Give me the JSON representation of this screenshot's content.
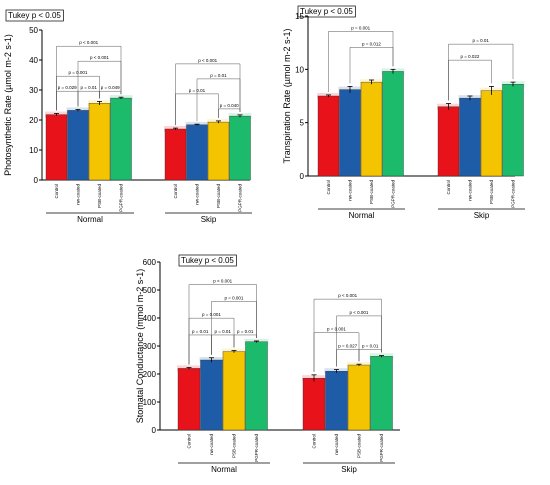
{
  "chart_data": [
    {
      "type": "bar",
      "title": "Tukey p < 0.05",
      "ylabel": "Photosynthetic Rate (µmol m-2 s-1)",
      "ylim": [
        0,
        50
      ],
      "yticks": [
        0,
        10,
        20,
        30,
        40,
        50
      ],
      "groups": [
        "Normal",
        "Skip"
      ],
      "categories": [
        "Control",
        "nw-coated",
        "PSB-coated",
        "PGPR-coated"
      ],
      "colors": [
        "#e8121b",
        "#1f5ca8",
        "#f5c400",
        "#1cba6b"
      ],
      "series": [
        {
          "group": "Normal",
          "values": [
            21.8,
            23.2,
            25.6,
            27.3
          ],
          "errors": [
            0.4,
            0.3,
            0.6,
            0.3
          ]
        },
        {
          "group": "Skip",
          "values": [
            17.0,
            18.4,
            19.3,
            21.3
          ],
          "errors": [
            0.3,
            0.2,
            0.4,
            0.4
          ]
        }
      ],
      "comparisons": [
        {
          "group": "Normal",
          "from": 0,
          "to": 3,
          "level": 4,
          "label": "p < 0.001"
        },
        {
          "group": "Normal",
          "from": 1,
          "to": 3,
          "level": 3,
          "label": "p < 0.001"
        },
        {
          "group": "Normal",
          "from": 0,
          "to": 2,
          "level": 2,
          "label": "p = 0.001"
        },
        {
          "group": "Normal",
          "from": 0,
          "to": 1,
          "level": 1,
          "label": "p = 0.029"
        },
        {
          "group": "Normal",
          "from": 1,
          "to": 2,
          "level": 1,
          "label": "p = 0.01"
        },
        {
          "group": "Normal",
          "from": 2,
          "to": 3,
          "level": 1,
          "label": "p = 0.049"
        },
        {
          "group": "Skip",
          "from": 0,
          "to": 3,
          "level": 4,
          "label": "p < 0.001"
        },
        {
          "group": "Skip",
          "from": 1,
          "to": 3,
          "level": 3,
          "label": "p = 0.01"
        },
        {
          "group": "Skip",
          "from": 0,
          "to": 2,
          "level": 2,
          "label": "p = 0.01"
        },
        {
          "group": "Skip",
          "from": 2,
          "to": 3,
          "level": 1,
          "label": "p = 0.040"
        }
      ]
    },
    {
      "type": "bar",
      "title": "Tukey p < 0.05",
      "ylabel": "Transpiration Rate (µmol m-2 s-1)",
      "ylim": [
        0,
        15
      ],
      "yticks": [
        0,
        5,
        10,
        15
      ],
      "groups": [
        "Normal",
        "Skip"
      ],
      "categories": [
        "Control",
        "nw-coated",
        "PSB-coated",
        "PGPR-coated"
      ],
      "colors": [
        "#e8121b",
        "#1f5ca8",
        "#f5c400",
        "#1cba6b"
      ],
      "series": [
        {
          "group": "Normal",
          "values": [
            7.5,
            8.1,
            8.8,
            9.8
          ],
          "errors": [
            0.1,
            0.3,
            0.2,
            0.2
          ]
        },
        {
          "group": "Skip",
          "values": [
            6.5,
            7.3,
            8.0,
            8.6
          ],
          "errors": [
            0.3,
            0.2,
            0.4,
            0.2
          ]
        }
      ],
      "comparisons": [
        {
          "group": "Normal",
          "from": 0,
          "to": 3,
          "level": 3,
          "label": "p = 0.001"
        },
        {
          "group": "Normal",
          "from": 1,
          "to": 3,
          "level": 2,
          "label": "p = 0.012"
        },
        {
          "group": "Skip",
          "from": 0,
          "to": 3,
          "level": 3,
          "label": "p = 0.01"
        },
        {
          "group": "Skip",
          "from": 0,
          "to": 2,
          "level": 2,
          "label": "p = 0.022"
        }
      ]
    },
    {
      "type": "bar",
      "title": "Tukey p < 0.05",
      "ylabel": "Stomatal Conductance (mmol m-2 s-1)",
      "ylim": [
        0,
        600
      ],
      "yticks": [
        0,
        100,
        200,
        300,
        400,
        500,
        600
      ],
      "groups": [
        "Normal",
        "Skip"
      ],
      "categories": [
        "Control",
        "nw-coated",
        "PSB-coated",
        "PGPR-coated"
      ],
      "colors": [
        "#e8121b",
        "#1f5ca8",
        "#f5c400",
        "#1cba6b"
      ],
      "series": [
        {
          "group": "Normal",
          "values": [
            220,
            250,
            280,
            315
          ],
          "errors": [
            3,
            8,
            4,
            3
          ]
        },
        {
          "group": "Skip",
          "values": [
            185,
            210,
            232,
            263
          ],
          "errors": [
            12,
            6,
            3,
            3
          ]
        }
      ],
      "comparisons": [
        {
          "group": "Normal",
          "from": 0,
          "to": 3,
          "level": 4,
          "label": "p < 0.001"
        },
        {
          "group": "Normal",
          "from": 1,
          "to": 3,
          "level": 3,
          "label": "p = 0.001"
        },
        {
          "group": "Normal",
          "from": 0,
          "to": 2,
          "level": 2,
          "label": "p = 0.001"
        },
        {
          "group": "Normal",
          "from": 0,
          "to": 1,
          "level": 1,
          "label": "p = 0.01"
        },
        {
          "group": "Normal",
          "from": 1,
          "to": 2,
          "level": 1,
          "label": "p = 0.01"
        },
        {
          "group": "Normal",
          "from": 2,
          "to": 3,
          "level": 1,
          "label": "p = 0.01"
        },
        {
          "group": "Skip",
          "from": 0,
          "to": 3,
          "level": 4,
          "label": "p < 0.001"
        },
        {
          "group": "Skip",
          "from": 1,
          "to": 3,
          "level": 3,
          "label": "p < 0.001"
        },
        {
          "group": "Skip",
          "from": 0,
          "to": 2,
          "level": 2,
          "label": "p = 0.001"
        },
        {
          "group": "Skip",
          "from": 1,
          "to": 2,
          "level": 1,
          "label": "p = 0.027"
        },
        {
          "group": "Skip",
          "from": 2,
          "to": 3,
          "level": 1,
          "label": "p = 0.01"
        }
      ]
    }
  ]
}
